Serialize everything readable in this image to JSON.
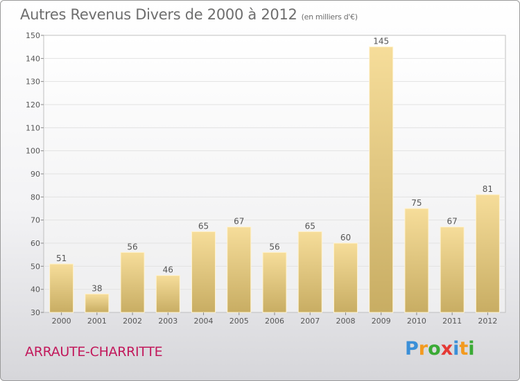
{
  "header": {
    "title": "Autres Revenus Divers de 2000 à 2012",
    "unit": "(en milliers d'€)"
  },
  "footer": {
    "town": "ARRAUTE-CHARRITTE",
    "logo_letters": [
      {
        "char": "P",
        "color": "#3a8fd8"
      },
      {
        "char": "r",
        "color": "#f39a1f"
      },
      {
        "char": "o",
        "color": "#3aaa35"
      },
      {
        "char": "x",
        "color": "#e53935"
      },
      {
        "char": "i",
        "color": "#3a8fd8"
      },
      {
        "char": "t",
        "color": "#f39a1f"
      },
      {
        "char": "i",
        "color": "#3aaa35"
      }
    ]
  },
  "chart_data": {
    "type": "bar",
    "title": "Autres Revenus Divers de 2000 à 2012",
    "subtitle": "(en milliers d'€)",
    "categories": [
      "2000",
      "2001",
      "2002",
      "2003",
      "2004",
      "2005",
      "2006",
      "2007",
      "2008",
      "2009",
      "2010",
      "2011",
      "2012"
    ],
    "values": [
      51,
      38,
      56,
      46,
      65,
      67,
      56,
      65,
      60,
      145,
      75,
      67,
      81
    ],
    "ylim": [
      30,
      150
    ],
    "yticks": [
      30,
      40,
      50,
      60,
      70,
      80,
      90,
      100,
      110,
      120,
      130,
      140,
      150
    ],
    "grid": true,
    "bar_color_top": "#f6dd9a",
    "bar_color_bottom": "#c8ad63"
  }
}
